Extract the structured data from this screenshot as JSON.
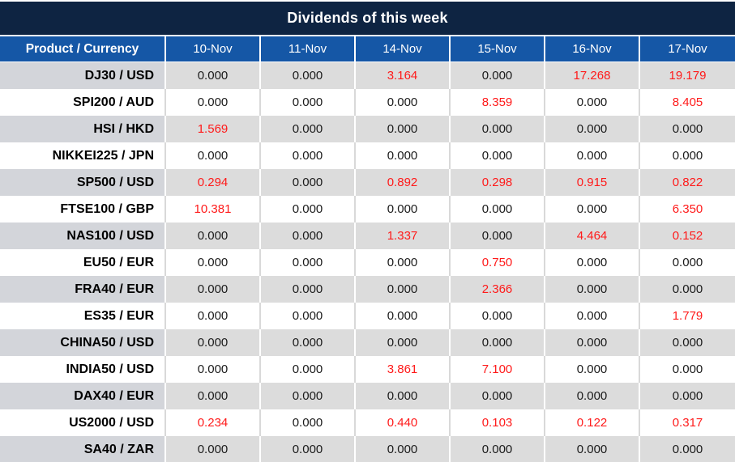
{
  "title": "Dividends of this week",
  "chart_data": {
    "type": "table",
    "title": "Dividends of this week",
    "corner_header": "Product / Currency",
    "date_headers": [
      "10-Nov",
      "11-Nov",
      "14-Nov",
      "15-Nov",
      "16-Nov",
      "17-Nov"
    ],
    "zero_display": "0.000",
    "rows": [
      {
        "product": "DJ30 / USD",
        "values": [
          "0.000",
          "0.000",
          "3.164",
          "0.000",
          "17.268",
          "19.179"
        ]
      },
      {
        "product": "SPI200 / AUD",
        "values": [
          "0.000",
          "0.000",
          "0.000",
          "8.359",
          "0.000",
          "8.405"
        ]
      },
      {
        "product": "HSI / HKD",
        "values": [
          "1.569",
          "0.000",
          "0.000",
          "0.000",
          "0.000",
          "0.000"
        ]
      },
      {
        "product": "NIKKEI225 / JPN",
        "values": [
          "0.000",
          "0.000",
          "0.000",
          "0.000",
          "0.000",
          "0.000"
        ]
      },
      {
        "product": "SP500 / USD",
        "values": [
          "0.294",
          "0.000",
          "0.892",
          "0.298",
          "0.915",
          "0.822"
        ]
      },
      {
        "product": "FTSE100 / GBP",
        "values": [
          "10.381",
          "0.000",
          "0.000",
          "0.000",
          "0.000",
          "6.350"
        ]
      },
      {
        "product": "NAS100 / USD",
        "values": [
          "0.000",
          "0.000",
          "1.337",
          "0.000",
          "4.464",
          "0.152"
        ]
      },
      {
        "product": "EU50 / EUR",
        "values": [
          "0.000",
          "0.000",
          "0.000",
          "0.750",
          "0.000",
          "0.000"
        ]
      },
      {
        "product": "FRA40 / EUR",
        "values": [
          "0.000",
          "0.000",
          "0.000",
          "2.366",
          "0.000",
          "0.000"
        ]
      },
      {
        "product": "ES35 / EUR",
        "values": [
          "0.000",
          "0.000",
          "0.000",
          "0.000",
          "0.000",
          "1.779"
        ]
      },
      {
        "product": "CHINA50 / USD",
        "values": [
          "0.000",
          "0.000",
          "0.000",
          "0.000",
          "0.000",
          "0.000"
        ]
      },
      {
        "product": "INDIA50 / USD",
        "values": [
          "0.000",
          "0.000",
          "3.861",
          "7.100",
          "0.000",
          "0.000"
        ]
      },
      {
        "product": "DAX40 / EUR",
        "values": [
          "0.000",
          "0.000",
          "0.000",
          "0.000",
          "0.000",
          "0.000"
        ]
      },
      {
        "product": "US2000 / USD",
        "values": [
          "0.234",
          "0.000",
          "0.440",
          "0.103",
          "0.122",
          "0.317"
        ]
      },
      {
        "product": "SA40 / ZAR",
        "values": [
          "0.000",
          "0.000",
          "0.000",
          "0.000",
          "0.000",
          "0.000"
        ]
      }
    ]
  },
  "colors": {
    "title_bar_bg": "#0e2442",
    "header_bg": "#1557a6",
    "header_text": "#ffffff",
    "odd_row_bg": "#dcdcdc",
    "odd_row_label_bg": "#d3d5da",
    "even_row_bg": "#ffffff",
    "value_text": "#1a1a1a",
    "nonzero_value_text": "#ff1a1a"
  }
}
